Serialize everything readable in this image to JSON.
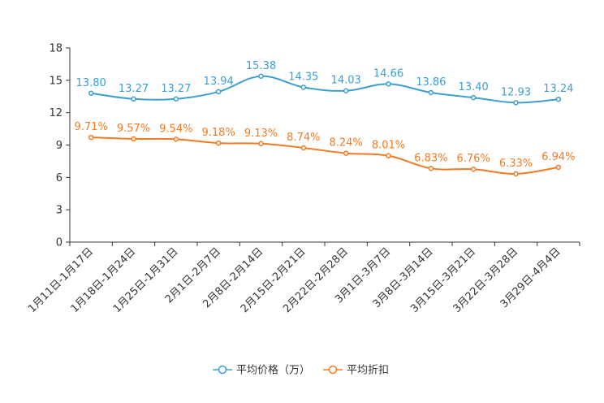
{
  "chart_data": {
    "type": "line",
    "title": "",
    "xlabel": "",
    "ylabel": "",
    "ylim": [
      0,
      18
    ],
    "yticks": [
      "0",
      "3",
      "6",
      "9",
      "12",
      "15",
      "18"
    ],
    "grid": false,
    "legend_position": "bottom-center",
    "categories": [
      "1月11日-1月17日",
      "1月18日-1月24日",
      "1月25日-1月31日",
      "2月1日-2月7日",
      "2月8日-2月14日",
      "2月15日-2月21日",
      "2月22日-2月28日",
      "3月1日-3月7日",
      "3月8日-3月14日",
      "3月15日-3月21日",
      "3月22日-3月28日",
      "3月29日-4月4日"
    ],
    "series": [
      {
        "name": "平均价格（万）",
        "color": "#3a9fd0",
        "values": [
          13.8,
          13.27,
          13.27,
          13.94,
          15.38,
          14.35,
          14.03,
          14.66,
          13.86,
          13.4,
          12.93,
          13.24
        ],
        "labels": [
          "13.80",
          "13.27",
          "13.27",
          "13.94",
          "15.38",
          "14.35",
          "14.03",
          "14.66",
          "13.86",
          "13.40",
          "12.93",
          "13.24"
        ]
      },
      {
        "name": "平均折扣",
        "color": "#f47a20",
        "values": [
          9.71,
          9.57,
          9.54,
          9.18,
          9.13,
          8.74,
          8.24,
          8.01,
          6.83,
          6.76,
          6.33,
          6.94
        ],
        "labels": [
          "9.71%",
          "9.57%",
          "9.54%",
          "9.18%",
          "9.13%",
          "8.74%",
          "8.24%",
          "8.01%",
          "6.83%",
          "6.76%",
          "6.33%",
          "6.94%"
        ]
      }
    ]
  }
}
